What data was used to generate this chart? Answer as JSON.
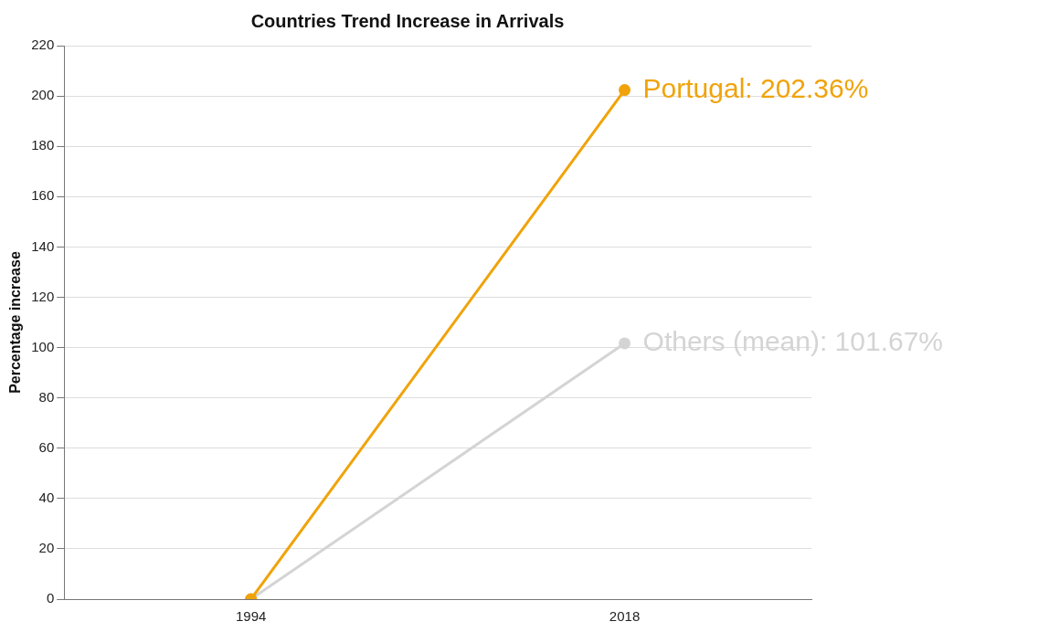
{
  "chart_data": {
    "type": "line",
    "title": "Countries Trend Increase in Arrivals",
    "ylabel": "Percentage increase",
    "categories": [
      "1994",
      "2018"
    ],
    "series": [
      {
        "color": "#f0a30a",
        "values": [
          0,
          202.36
        ],
        "value_labels": [
          null,
          "Portugal: 202.36%"
        ]
      },
      {
        "color": "#d4d4d4",
        "values": [
          0,
          101.67
        ],
        "value_labels": [
          null,
          "Others (mean): 101.67%"
        ]
      }
    ],
    "ylim": [
      0,
      220
    ],
    "yticks": [
      0,
      20,
      40,
      60,
      80,
      100,
      120,
      140,
      160,
      180,
      200,
      220
    ],
    "grid": "y",
    "legend": false,
    "marker": "circle",
    "line_style": "solid"
  }
}
